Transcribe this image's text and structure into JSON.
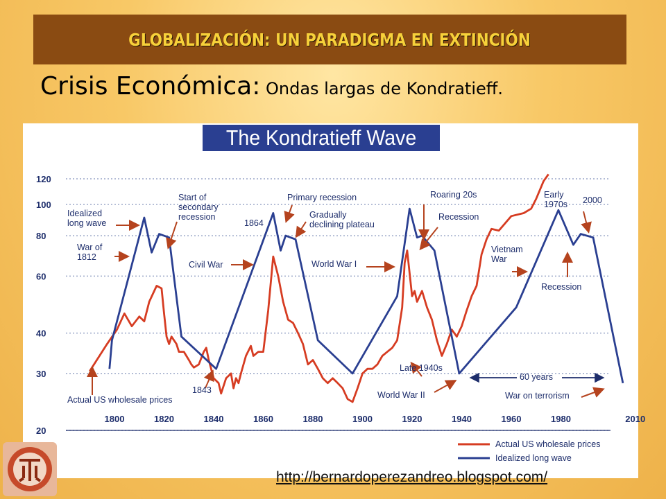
{
  "header": {
    "title": "GLOBALIZACIÓN:  UN PARADIGMA EN EXTINCIÓN"
  },
  "subtitle": {
    "main": "Crisis Económica:",
    "detail": " Ondas largas de Kondratieff."
  },
  "footer": {
    "url": "http://bernardoperezandreo.blogspot.com/"
  },
  "colors": {
    "banner": "#8a4b12",
    "banner_text": "#f7d13a",
    "actual": "#d63c22",
    "idealized": "#2a3f91",
    "title_box": "#2a3f91"
  },
  "logo": {
    "icon": "kondratieff-logo-icon"
  },
  "chart_data": {
    "type": "line",
    "title": "The Kondratieff Wave",
    "y_scale": "log",
    "ylim": [
      20,
      120
    ],
    "xlim": [
      1790,
      2010
    ],
    "y_ticks": [
      20,
      30,
      40,
      60,
      80,
      100,
      120
    ],
    "x_ticks": [
      1800,
      1820,
      1840,
      1860,
      1880,
      1900,
      1920,
      1940,
      1960,
      1980,
      2010
    ],
    "grid": true,
    "legend_position": "bottom-right",
    "series": [
      {
        "name": "Actual US wholesale prices",
        "color": "#d63c22",
        "points": [
          [
            1790,
            30.5
          ],
          [
            1797,
            37
          ],
          [
            1801,
            41
          ],
          [
            1804,
            46
          ],
          [
            1807,
            42
          ],
          [
            1810,
            45
          ],
          [
            1812,
            43.5
          ],
          [
            1814,
            50
          ],
          [
            1817,
            56
          ],
          [
            1819,
            55
          ],
          [
            1820,
            46
          ],
          [
            1821,
            39
          ],
          [
            1822,
            37
          ],
          [
            1823,
            39
          ],
          [
            1825,
            37
          ],
          [
            1826,
            35
          ],
          [
            1828,
            35
          ],
          [
            1830,
            33
          ],
          [
            1831,
            32
          ],
          [
            1832,
            31.3
          ],
          [
            1834,
            32
          ],
          [
            1836,
            35
          ],
          [
            1837,
            36
          ],
          [
            1838,
            33
          ],
          [
            1840,
            29
          ],
          [
            1842,
            28
          ],
          [
            1843,
            26
          ],
          [
            1845,
            29
          ],
          [
            1847,
            30
          ],
          [
            1848,
            27
          ],
          [
            1849,
            29
          ],
          [
            1850,
            28
          ],
          [
            1851,
            30
          ],
          [
            1853,
            34
          ],
          [
            1855,
            36.5
          ],
          [
            1856,
            34
          ],
          [
            1858,
            35
          ],
          [
            1860,
            35
          ],
          [
            1862,
            47
          ],
          [
            1864,
            69
          ],
          [
            1866,
            60
          ],
          [
            1868,
            50
          ],
          [
            1870,
            44
          ],
          [
            1872,
            43
          ],
          [
            1874,
            40
          ],
          [
            1876,
            37
          ],
          [
            1878,
            32
          ],
          [
            1880,
            33
          ],
          [
            1882,
            31
          ],
          [
            1884,
            29
          ],
          [
            1886,
            28
          ],
          [
            1888,
            29
          ],
          [
            1890,
            28
          ],
          [
            1892,
            27
          ],
          [
            1894,
            25
          ],
          [
            1896,
            24.5
          ],
          [
            1898,
            27
          ],
          [
            1900,
            30
          ],
          [
            1902,
            31
          ],
          [
            1904,
            31
          ],
          [
            1906,
            32
          ],
          [
            1908,
            34
          ],
          [
            1910,
            35
          ],
          [
            1912,
            36
          ],
          [
            1914,
            38
          ],
          [
            1916,
            48
          ],
          [
            1917,
            66
          ],
          [
            1918,
            72
          ],
          [
            1920,
            52
          ],
          [
            1921,
            54
          ],
          [
            1922,
            50
          ],
          [
            1924,
            54
          ],
          [
            1926,
            48
          ],
          [
            1928,
            44
          ],
          [
            1930,
            38
          ],
          [
            1932,
            34
          ],
          [
            1934,
            37
          ],
          [
            1936,
            41
          ],
          [
            1938,
            39
          ],
          [
            1940,
            42
          ],
          [
            1942,
            47
          ],
          [
            1944,
            52
          ],
          [
            1946,
            56
          ],
          [
            1948,
            70
          ],
          [
            1950,
            78
          ],
          [
            1952,
            84
          ],
          [
            1955,
            83
          ],
          [
            1960,
            92
          ],
          [
            1965,
            94
          ],
          [
            1968,
            97
          ],
          [
            1970,
            104
          ],
          [
            1973,
            118
          ],
          [
            1975,
            124
          ]
        ]
      },
      {
        "name": "Idealized long wave",
        "color": "#2a3f91",
        "points": [
          [
            1798,
            31
          ],
          [
            1799,
            38
          ],
          [
            1812,
            91
          ],
          [
            1815,
            71
          ],
          [
            1818,
            81
          ],
          [
            1822,
            79
          ],
          [
            1827,
            39
          ],
          [
            1841,
            31
          ],
          [
            1864,
            94
          ],
          [
            1867,
            72
          ],
          [
            1869,
            80
          ],
          [
            1873,
            78
          ],
          [
            1882,
            38
          ],
          [
            1896,
            30
          ],
          [
            1914,
            52
          ],
          [
            1919,
            97
          ],
          [
            1922,
            79
          ],
          [
            1924,
            80
          ],
          [
            1929,
            72
          ],
          [
            1939,
            30
          ],
          [
            1962,
            48
          ],
          [
            1979,
            96
          ],
          [
            1985,
            75
          ],
          [
            1988,
            81
          ],
          [
            1993,
            79
          ],
          [
            2005,
            28
          ]
        ]
      }
    ],
    "annotations": {
      "a_ideal": "Idealized\nlong wave",
      "a_1812": "War of\n1812",
      "a_start_sec": "Start of\nsecondary\nrecession",
      "a_1864": "1864",
      "a_primary": "Primary recession",
      "a_gradual": "Gradually\ndeclining plateau",
      "a_civil": "Civil War",
      "a_ww1": "World War I",
      "a_roaring": "Roaring 20s",
      "a_recession": "Recession",
      "a_early70": "Early\n1970s",
      "a_2000": "2000",
      "a_vietnam": "Vietnam\nWar",
      "a_recession2": "Recession",
      "a_1843": "1843",
      "a_actual": "Actual US wholesale prices",
      "a_late40": "Late 1940s",
      "a_ww2": "World War II",
      "a_60": "60 years",
      "a_terror": "War on terrorism"
    }
  }
}
